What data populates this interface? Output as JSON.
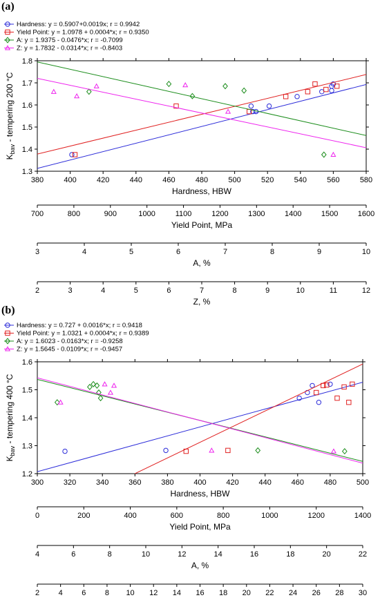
{
  "chart_data": [
    {
      "panel_label": "(a)",
      "type": "scatter",
      "ylabel_main": "K",
      "ylabel_sub": "bav",
      "ylabel_rest": " - tempering 200 °C",
      "ylim": [
        1.3,
        1.8
      ],
      "yticks": [
        "1.3",
        "1.4",
        "1.5",
        "1.6",
        "1.7",
        "1.8"
      ],
      "axes": [
        {
          "label": "Hardness, HBW",
          "min": 380,
          "max": 580,
          "ticks": [
            "380",
            "400",
            "420",
            "440",
            "460",
            "480",
            "500",
            "520",
            "540",
            "560",
            "580"
          ]
        },
        {
          "label": "Yield Point, MPa",
          "min": 700,
          "max": 1600,
          "ticks": [
            "700",
            "800",
            "900",
            "1000",
            "1100",
            "1200",
            "1300",
            "1400",
            "1500",
            "1600"
          ]
        },
        {
          "label": "A, %",
          "min": 3,
          "max": 10,
          "ticks": [
            "3",
            "4",
            "5",
            "6",
            "7",
            "8",
            "9",
            "10"
          ]
        },
        {
          "label": "Z, %",
          "min": 2,
          "max": 12,
          "ticks": [
            "2",
            "3",
            "4",
            "5",
            "6",
            "7",
            "8",
            "9",
            "10",
            "11",
            "12"
          ]
        }
      ],
      "series": [
        {
          "name": "Hardness: y = 0.5907+0.0019x; r = 0.9942",
          "color": "#2b2bd9",
          "marker": "circle",
          "axis": 0,
          "fit": {
            "intercept": 0.5907,
            "slope": 0.0019
          },
          "points": [
            [
              401,
              1.375
            ],
            [
              510,
              1.595
            ],
            [
              511,
              1.57
            ],
            [
              513,
              1.57
            ],
            [
              521,
              1.595
            ],
            [
              538,
              1.638
            ],
            [
              553,
              1.66
            ],
            [
              559,
              1.665
            ],
            [
              559,
              1.685
            ],
            [
              560,
              1.695
            ]
          ]
        },
        {
          "name": "Yield Point: y = 1.0978 + 0.0004*x; r = 0.9350",
          "color": "#e02020",
          "marker": "square",
          "axis": 1,
          "fit": {
            "intercept": 1.0978,
            "slope": 0.0004
          },
          "points": [
            [
              803,
              1.375
            ],
            [
              1080,
              1.595
            ],
            [
              1280,
              1.57
            ],
            [
              1380,
              1.638
            ],
            [
              1440,
              1.66
            ],
            [
              1460,
              1.695
            ],
            [
              1490,
              1.67
            ],
            [
              1520,
              1.685
            ]
          ]
        },
        {
          "name": "A: y = 1.9375 - 0.0476*x; r = -0.7099",
          "color": "#1a8c1a",
          "marker": "diamond",
          "axis": 2,
          "fit": {
            "intercept": 1.9375,
            "slope": -0.0476
          },
          "points": [
            [
              4.1,
              1.66
            ],
            [
              5.8,
              1.695
            ],
            [
              6.3,
              1.64
            ],
            [
              7.0,
              1.685
            ],
            [
              7.4,
              1.665
            ],
            [
              9.1,
              1.375
            ]
          ]
        },
        {
          "name": "Z: y = 1.7832 - 0.0314*x; r = -0.8403",
          "color": "#ee22ee",
          "marker": "triangle",
          "axis": 3,
          "fit": {
            "intercept": 1.7832,
            "slope": -0.0314
          },
          "points": [
            [
              2.5,
              1.66
            ],
            [
              3.2,
              1.64
            ],
            [
              3.8,
              1.685
            ],
            [
              6.5,
              1.69
            ],
            [
              7.8,
              1.57
            ],
            [
              11.0,
              1.375
            ]
          ]
        }
      ]
    },
    {
      "panel_label": "(b)",
      "type": "scatter",
      "ylabel_main": "K",
      "ylabel_sub": "bav",
      "ylabel_rest": " - tempering 400 °C",
      "ylim": [
        1.2,
        1.6
      ],
      "yticks": [
        "1.2",
        "1.3",
        "1.4",
        "1.5",
        "1.6"
      ],
      "axes": [
        {
          "label": "Hardness, HBW",
          "min": 300,
          "max": 500,
          "ticks": [
            "300",
            "320",
            "340",
            "360",
            "380",
            "400",
            "420",
            "440",
            "460",
            "480",
            "500"
          ]
        },
        {
          "label": "Yield Point, MPa",
          "min": 0,
          "max": 1400,
          "ticks": [
            "0",
            "200",
            "400",
            "600",
            "800",
            "1000",
            "1200",
            "1400"
          ]
        },
        {
          "label": "A, %",
          "min": 4,
          "max": 22,
          "ticks": [
            "4",
            "6",
            "8",
            "10",
            "12",
            "14",
            "16",
            "18",
            "20",
            "22"
          ]
        },
        {
          "label": "Z, %",
          "min": 2,
          "max": 30,
          "ticks": [
            "2",
            "4",
            "6",
            "8",
            "10",
            "12",
            "14",
            "16",
            "18",
            "20",
            "22",
            "24",
            "26",
            "28",
            "30"
          ]
        }
      ],
      "series": [
        {
          "name": "Hardness: y = 0.727 + 0.0016*x; r = 0.9418",
          "color": "#2b2bd9",
          "marker": "circle",
          "axis": 0,
          "fit": {
            "intercept": 0.727,
            "slope": 0.0016
          },
          "points": [
            [
              317,
              1.28
            ],
            [
              379,
              1.283
            ],
            [
              461,
              1.47
            ],
            [
              466,
              1.49
            ],
            [
              469,
              1.515
            ],
            [
              473,
              1.455
            ],
            [
              480,
              1.52
            ]
          ]
        },
        {
          "name": "Yield Point: y = 1.0321 + 0.0004*x; r = 0.9389",
          "color": "#e02020",
          "marker": "square",
          "axis": 1,
          "fit": {
            "intercept": 1.0321,
            "slope": 0.0004
          },
          "points": [
            [
              640,
              1.28
            ],
            [
              820,
              1.283
            ],
            [
              1200,
              1.49
            ],
            [
              1230,
              1.515
            ],
            [
              1245,
              1.517
            ],
            [
              1290,
              1.47
            ],
            [
              1320,
              1.51
            ],
            [
              1340,
              1.455
            ],
            [
              1355,
              1.52
            ]
          ]
        },
        {
          "name": "A: y = 1.6023 - 0.0163*x; r = -0.9258",
          "color": "#1a8c1a",
          "marker": "diamond",
          "axis": 2,
          "fit": {
            "intercept": 1.6023,
            "slope": -0.0163
          },
          "points": [
            [
              5.1,
              1.455
            ],
            [
              6.9,
              1.51
            ],
            [
              7.1,
              1.52
            ],
            [
              7.3,
              1.515
            ],
            [
              7.4,
              1.49
            ],
            [
              7.5,
              1.47
            ],
            [
              16.2,
              1.283
            ],
            [
              21.0,
              1.28
            ]
          ]
        },
        {
          "name": "Z: y = 1.5645 - 0.0109*x; r = -0.9457",
          "color": "#ee22ee",
          "marker": "triangle",
          "axis": 3,
          "fit": {
            "intercept": 1.5645,
            "slope": -0.0109
          },
          "points": [
            [
              4.0,
              1.455
            ],
            [
              7.8,
              1.52
            ],
            [
              8.3,
              1.49
            ],
            [
              8.6,
              1.515
            ],
            [
              17.0,
              1.283
            ],
            [
              27.5,
              1.28
            ]
          ]
        }
      ]
    }
  ]
}
